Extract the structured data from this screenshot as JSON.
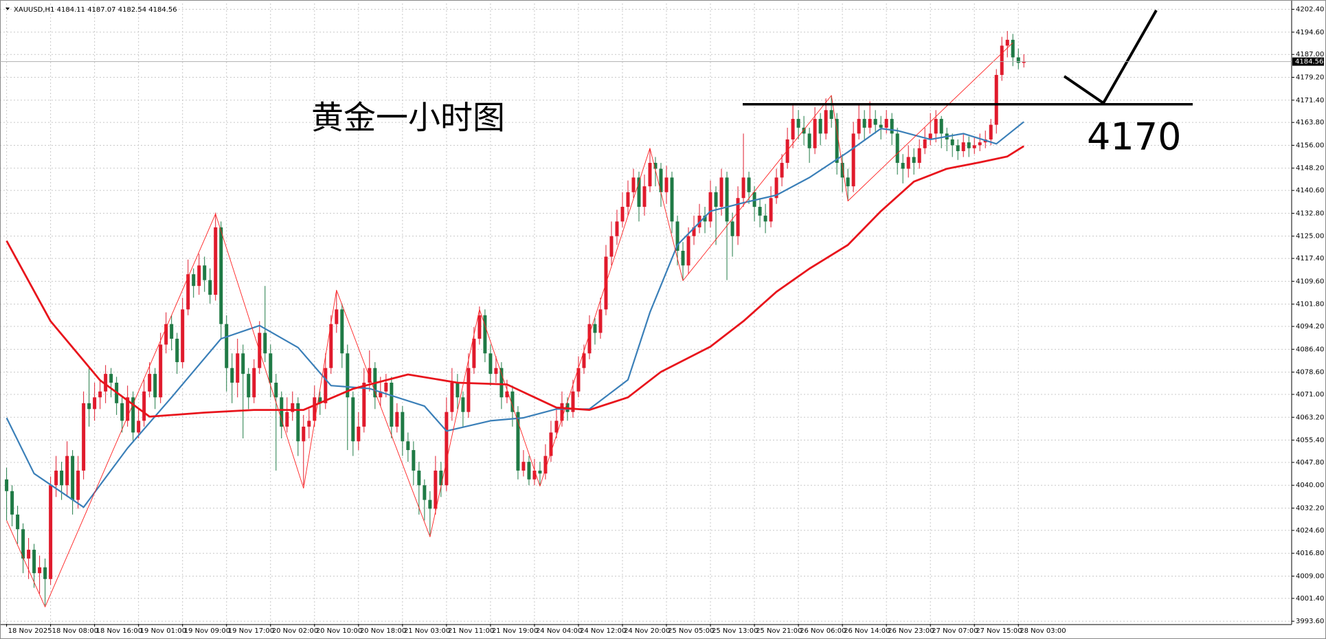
{
  "chart_data": {
    "type": "candlestick",
    "title": "XAUUSD,H1",
    "annotation": "黄金一小时图",
    "level": 4170,
    "up_color": "#e01a2c",
    "down_color": "#1f7a45",
    "grid": true,
    "xlim": [
      -1.2,
      233.7
    ],
    "ylim": [
      3992.7,
      4204.4
    ],
    "yticks": [
      {
        "value": 4202.4,
        "label": "4202.40"
      },
      {
        "value": 4194.6,
        "label": "4194.60"
      },
      {
        "value": 4187,
        "label": "4187.00"
      },
      {
        "value": 4179.2,
        "label": "4179.20"
      },
      {
        "value": 4171.4,
        "label": "4171.40"
      },
      {
        "value": 4163.8,
        "label": "4163.80"
      },
      {
        "value": 4156,
        "label": "4156.00"
      },
      {
        "value": 4148.2,
        "label": "4148.20"
      },
      {
        "value": 4140.6,
        "label": "4140.60"
      },
      {
        "value": 4132.8,
        "label": "4132.80"
      },
      {
        "value": 4125,
        "label": "4125.00"
      },
      {
        "value": 4117.4,
        "label": "4117.40"
      },
      {
        "value": 4109.6,
        "label": "4109.60"
      },
      {
        "value": 4101.8,
        "label": "4101.80"
      },
      {
        "value": 4094.2,
        "label": "4094.20"
      },
      {
        "value": 4086.4,
        "label": "4086.40"
      },
      {
        "value": 4078.6,
        "label": "4078.60"
      },
      {
        "value": 4071,
        "label": "4071.00"
      },
      {
        "value": 4063.2,
        "label": "4063.20"
      },
      {
        "value": 4055.4,
        "label": "4055.40"
      },
      {
        "value": 4047.8,
        "label": "4047.80"
      },
      {
        "value": 4040,
        "label": "4040.00"
      },
      {
        "value": 4032.2,
        "label": "4032.20"
      },
      {
        "value": 4024.6,
        "label": "4024.60"
      },
      {
        "value": 4016.8,
        "label": "4016.80"
      },
      {
        "value": 4009,
        "label": "4009.00"
      },
      {
        "value": 4001.4,
        "label": "4001.40"
      },
      {
        "value": 3993.6,
        "label": "3993.60"
      }
    ],
    "xticks": [
      {
        "value": 0,
        "label": "18 Nov 2025"
      },
      {
        "value": 8,
        "label": "18 Nov 08:00"
      },
      {
        "value": 16,
        "label": "18 Nov 16:00"
      },
      {
        "value": 24,
        "label": "19 Nov 01:00"
      },
      {
        "value": 32,
        "label": "19 Nov 09:00"
      },
      {
        "value": 40,
        "label": "19 Nov 17:00"
      },
      {
        "value": 48,
        "label": "20 Nov 02:00"
      },
      {
        "value": 56,
        "label": "20 Nov 10:00"
      },
      {
        "value": 64,
        "label": "20 Nov 18:00"
      },
      {
        "value": 72,
        "label": "21 Nov 03:00"
      },
      {
        "value": 80,
        "label": "21 Nov 11:00"
      },
      {
        "value": 88,
        "label": "21 Nov 19:00"
      },
      {
        "value": 96,
        "label": "24 Nov 04:00"
      },
      {
        "value": 104,
        "label": "24 Nov 12:00"
      },
      {
        "value": 112,
        "label": "24 Nov 20:00"
      },
      {
        "value": 120,
        "label": "25 Nov 05:00"
      },
      {
        "value": 128,
        "label": "25 Nov 13:00"
      },
      {
        "value": 136,
        "label": "25 Nov 21:00"
      },
      {
        "value": 144,
        "label": "26 Nov 06:00"
      },
      {
        "value": 152,
        "label": "26 Nov 14:00"
      },
      {
        "value": 160,
        "label": "26 Nov 23:00"
      },
      {
        "value": 168,
        "label": "27 Nov 07:00"
      },
      {
        "value": 176,
        "label": "27 Nov 15:00"
      },
      {
        "value": 184,
        "label": "28 Nov 03:00"
      }
    ],
    "candles": [
      [
        4042,
        4046,
        4028,
        4038
      ],
      [
        4038,
        4040,
        4026,
        4030
      ],
      [
        4030,
        4033,
        4020,
        4025
      ],
      [
        4025,
        4027,
        4010,
        4015
      ],
      [
        4015,
        4022,
        4008,
        4018
      ],
      [
        4018,
        4020,
        4005,
        4010
      ],
      [
        4010,
        4016,
        4003,
        4012
      ],
      [
        4012,
        4015,
        3999,
        4008
      ],
      [
        4008,
        4043,
        4006,
        4040
      ],
      [
        4040,
        4050,
        4036,
        4045
      ],
      [
        4045,
        4048,
        4035,
        4040
      ],
      [
        4040,
        4055,
        4036,
        4050
      ],
      [
        4050,
        4052,
        4030,
        4035
      ],
      [
        4035,
        4050,
        4032,
        4045
      ],
      [
        4045,
        4072,
        4042,
        4068
      ],
      [
        4068,
        4080,
        4060,
        4066
      ],
      [
        4066,
        4075,
        4062,
        4070
      ],
      [
        4070,
        4076,
        4066,
        4072
      ],
      [
        4072,
        4081,
        4068,
        4078
      ],
      [
        4078,
        4080,
        4070,
        4075
      ],
      [
        4075,
        4077,
        4064,
        4068
      ],
      [
        4068,
        4070,
        4058,
        4062
      ],
      [
        4062,
        4074,
        4060,
        4070
      ],
      [
        4070,
        4072,
        4055,
        4058
      ],
      [
        4058,
        4066,
        4056,
        4062
      ],
      [
        4062,
        4076,
        4060,
        4072
      ],
      [
        4072,
        4082,
        4070,
        4078
      ],
      [
        4078,
        4080,
        4066,
        4070
      ],
      [
        4070,
        4092,
        4068,
        4088
      ],
      [
        4088,
        4099,
        4085,
        4095
      ],
      [
        4095,
        4098,
        4086,
        4090
      ],
      [
        4090,
        4092,
        4078,
        4082
      ],
      [
        4082,
        4104,
        4080,
        4100
      ],
      [
        4100,
        4117,
        4098,
        4112
      ],
      [
        4112,
        4114,
        4104,
        4108
      ],
      [
        4108,
        4119,
        4105,
        4115
      ],
      [
        4115,
        4118,
        4106,
        4110
      ],
      [
        4110,
        4114,
        4102,
        4105
      ],
      [
        4105,
        4133,
        4103,
        4128
      ],
      [
        4128,
        4130,
        4090,
        4095
      ],
      [
        4095,
        4098,
        4072,
        4080
      ],
      [
        4080,
        4085,
        4068,
        4075
      ],
      [
        4075,
        4090,
        4070,
        4085
      ],
      [
        4085,
        4088,
        4056,
        4078
      ],
      [
        4078,
        4080,
        4066,
        4070
      ],
      [
        4070,
        4083,
        4068,
        4080
      ],
      [
        4080,
        4096,
        4078,
        4092
      ],
      [
        4092,
        4108,
        4082,
        4085
      ],
      [
        4085,
        4088,
        4070,
        4075
      ],
      [
        4075,
        4078,
        4045,
        4070
      ],
      [
        4070,
        4072,
        4056,
        4060
      ],
      [
        4060,
        4070,
        4058,
        4065
      ],
      [
        4065,
        4072,
        4062,
        4068
      ],
      [
        4068,
        4070,
        4050,
        4055
      ],
      [
        4055,
        4064,
        4040,
        4060
      ],
      [
        4060,
        4066,
        4056,
        4062
      ],
      [
        4062,
        4074,
        4060,
        4070
      ],
      [
        4070,
        4072,
        4064,
        4068
      ],
      [
        4068,
        4085,
        4066,
        4080
      ],
      [
        4080,
        4098,
        4078,
        4095
      ],
      [
        4095,
        4106,
        4092,
        4100
      ],
      [
        4100,
        4102,
        4080,
        4085
      ],
      [
        4085,
        4088,
        4052,
        4070
      ],
      [
        4070,
        4072,
        4050,
        4055
      ],
      [
        4055,
        4065,
        4052,
        4060
      ],
      [
        4060,
        4080,
        4058,
        4075
      ],
      [
        4075,
        4086,
        4072,
        4080
      ],
      [
        4080,
        4082,
        4066,
        4070
      ],
      [
        4070,
        4077,
        4067,
        4072
      ],
      [
        4072,
        4078,
        4070,
        4075
      ],
      [
        4075,
        4077,
        4056,
        4060
      ],
      [
        4060,
        4068,
        4058,
        4065
      ],
      [
        4065,
        4067,
        4050,
        4055
      ],
      [
        4055,
        4058,
        4048,
        4052
      ],
      [
        4052,
        4055,
        4040,
        4045
      ],
      [
        4045,
        4048,
        4030,
        4040
      ],
      [
        4040,
        4042,
        4028,
        4035
      ],
      [
        4035,
        4038,
        4023,
        4032
      ],
      [
        4032,
        4050,
        4030,
        4045
      ],
      [
        4045,
        4048,
        4036,
        4040
      ],
      [
        4040,
        4070,
        4038,
        4065
      ],
      [
        4065,
        4080,
        4062,
        4075
      ],
      [
        4075,
        4078,
        4066,
        4070
      ],
      [
        4070,
        4072,
        4060,
        4065
      ],
      [
        4065,
        4085,
        4063,
        4080
      ],
      [
        4080,
        4094,
        4078,
        4090
      ],
      [
        4090,
        4101,
        4088,
        4098
      ],
      [
        4098,
        4100,
        4082,
        4085
      ],
      [
        4085,
        4088,
        4074,
        4078
      ],
      [
        4078,
        4084,
        4075,
        4080
      ],
      [
        4080,
        4082,
        4066,
        4070
      ],
      [
        4070,
        4076,
        4068,
        4072
      ],
      [
        4072,
        4074,
        4060,
        4065
      ],
      [
        4065,
        4067,
        4042,
        4045
      ],
      [
        4045,
        4052,
        4043,
        4048
      ],
      [
        4048,
        4050,
        4040,
        4042
      ],
      [
        4042,
        4049,
        4040,
        4045
      ],
      [
        4045,
        4048,
        4040,
        4044
      ],
      [
        4044,
        4054,
        4042,
        4050
      ],
      [
        4050,
        4062,
        4048,
        4058
      ],
      [
        4058,
        4066,
        4056,
        4062
      ],
      [
        4062,
        4072,
        4060,
        4068
      ],
      [
        4068,
        4070,
        4062,
        4065
      ],
      [
        4065,
        4076,
        4063,
        4072
      ],
      [
        4072,
        4084,
        4070,
        4080
      ],
      [
        4080,
        4088,
        4078,
        4085
      ],
      [
        4085,
        4098,
        4083,
        4095
      ],
      [
        4095,
        4097,
        4088,
        4092
      ],
      [
        4092,
        4104,
        4090,
        4100
      ],
      [
        4100,
        4122,
        4098,
        4118
      ],
      [
        4118,
        4130,
        4115,
        4125
      ],
      [
        4125,
        4134,
        4122,
        4130
      ],
      [
        4130,
        4140,
        4128,
        4135
      ],
      [
        4135,
        4144,
        4132,
        4140
      ],
      [
        4140,
        4148,
        4138,
        4145
      ],
      [
        4145,
        4147,
        4130,
        4135
      ],
      [
        4135,
        4146,
        4132,
        4142
      ],
      [
        4142,
        4155,
        4140,
        4150
      ],
      [
        4150,
        4152,
        4142,
        4148
      ],
      [
        4148,
        4150,
        4135,
        4140
      ],
      [
        4140,
        4149,
        4136,
        4145
      ],
      [
        4145,
        4147,
        4126,
        4130
      ],
      [
        4130,
        4132,
        4115,
        4120
      ],
      [
        4120,
        4123,
        4110,
        4115
      ],
      [
        4115,
        4128,
        4112,
        4125
      ],
      [
        4125,
        4132,
        4122,
        4128
      ],
      [
        4128,
        4136,
        4126,
        4132
      ],
      [
        4132,
        4135,
        4126,
        4130
      ],
      [
        4130,
        4144,
        4128,
        4140
      ],
      [
        4140,
        4142,
        4122,
        4135
      ],
      [
        4135,
        4148,
        4132,
        4145
      ],
      [
        4145,
        4147,
        4110,
        4130
      ],
      [
        4130,
        4133,
        4118,
        4125
      ],
      [
        4125,
        4142,
        4122,
        4138
      ],
      [
        4138,
        4160,
        4135,
        4145
      ],
      [
        4145,
        4147,
        4136,
        4140
      ],
      [
        4140,
        4142,
        4130,
        4135
      ],
      [
        4135,
        4138,
        4128,
        4132
      ],
      [
        4132,
        4136,
        4126,
        4130
      ],
      [
        4130,
        4142,
        4128,
        4138
      ],
      [
        4138,
        4148,
        4136,
        4145
      ],
      [
        4145,
        4153,
        4142,
        4150
      ],
      [
        4150,
        4162,
        4148,
        4158
      ],
      [
        4158,
        4170,
        4155,
        4165
      ],
      [
        4165,
        4168,
        4158,
        4162
      ],
      [
        4162,
        4166,
        4156,
        4160
      ],
      [
        4160,
        4162,
        4150,
        4155
      ],
      [
        4155,
        4169,
        4153,
        4165
      ],
      [
        4165,
        4167,
        4156,
        4160
      ],
      [
        4160,
        4172,
        4158,
        4168
      ],
      [
        4168,
        4173,
        4162,
        4165
      ],
      [
        4165,
        4167,
        4146,
        4150
      ],
      [
        4150,
        4153,
        4140,
        4145
      ],
      [
        4145,
        4148,
        4137,
        4142
      ],
      [
        4142,
        4164,
        4140,
        4160
      ],
      [
        4160,
        4170,
        4158,
        4165
      ],
      [
        4165,
        4168,
        4158,
        4162
      ],
      [
        4162,
        4171,
        4160,
        4165
      ],
      [
        4165,
        4168,
        4160,
        4163
      ],
      [
        4163,
        4166,
        4158,
        4162
      ],
      [
        4162,
        4168,
        4160,
        4165
      ],
      [
        4165,
        4167,
        4156,
        4160
      ],
      [
        4160,
        4162,
        4146,
        4150
      ],
      [
        4150,
        4153,
        4143,
        4148
      ],
      [
        4148,
        4156,
        4145,
        4152
      ],
      [
        4152,
        4155,
        4146,
        4150
      ],
      [
        4150,
        4158,
        4148,
        4155
      ],
      [
        4155,
        4162,
        4153,
        4158
      ],
      [
        4158,
        4167,
        4156,
        4160
      ],
      [
        4160,
        4168,
        4157,
        4165
      ],
      [
        4165,
        4166,
        4155,
        4160
      ],
      [
        4160,
        4162,
        4154,
        4158
      ],
      [
        4158,
        4160,
        4152,
        4156
      ],
      [
        4156,
        4158,
        4151,
        4154
      ],
      [
        4154,
        4160,
        4152,
        4157
      ],
      [
        4157,
        4159,
        4152,
        4155
      ],
      [
        4155,
        4159,
        4153,
        4156
      ],
      [
        4156,
        4160,
        4154,
        4157
      ],
      [
        4157,
        4161,
        4155,
        4158
      ],
      [
        4158,
        4165,
        4156,
        4163
      ],
      [
        4163,
        4182,
        4160,
        4180
      ],
      [
        4180,
        4193,
        4178,
        4190
      ],
      [
        4190,
        4195,
        4186,
        4192
      ],
      [
        4192,
        4194,
        4183,
        4186
      ],
      [
        4186,
        4189,
        4182,
        4184.11
      ],
      [
        4184.11,
        4187.07,
        4182.54,
        4184.56
      ]
    ],
    "lines": [
      {
        "color": "#3a7fb8",
        "width": 2.2,
        "x": [
          0,
          5,
          14,
          22,
          30,
          39,
          46,
          53,
          59,
          66,
          76,
          80,
          88,
          94,
          100,
          106,
          113,
          117,
          122,
          128,
          134,
          140,
          146,
          153,
          159,
          162,
          168,
          174,
          180,
          185
        ],
        "values": [
          4063,
          4044,
          4032.5,
          4052.7,
          4070,
          4090,
          4094.5,
          4087,
          4074,
          4073,
          4067,
          4058.5,
          4062,
          4063,
          4066,
          4066,
          4076,
          4099,
          4122,
          4133.5,
          4136.4,
          4139,
          4145,
          4153.7,
          4161.7,
          4161,
          4158,
          4160,
          4156.5,
          4164
        ]
      },
      {
        "color": "#e8141c",
        "width": 2.8,
        "x": [
          0,
          8,
          17,
          26,
          36,
          45,
          54,
          63,
          73,
          82,
          91,
          100,
          106,
          113,
          119,
          128,
          134,
          140,
          146,
          153,
          159,
          165,
          171,
          177,
          182,
          185
        ],
        "values": [
          4123.4,
          4096,
          4075.8,
          4063.4,
          4064.8,
          4065.7,
          4065.7,
          4072.9,
          4077.8,
          4075,
          4074.4,
          4066.5,
          4065.7,
          4070,
          4078.7,
          4087.3,
          4096,
          4106,
          4113.9,
          4122,
          4133.5,
          4143.6,
          4148,
          4150.2,
          4152.2,
          4155.7
        ]
      },
      {
        "color": "#ff2020",
        "width": 0.9,
        "x": [
          0,
          7,
          38,
          54,
          60,
          77,
          86,
          97,
          117,
          123,
          150,
          153,
          183
        ],
        "values": [
          4028,
          3998.5,
          4132.6,
          4039,
          4106.6,
          4022.4,
          4100,
          4039.7,
          4155,
          4109.8,
          4173,
          4137,
          4191
        ]
      }
    ]
  }
}
